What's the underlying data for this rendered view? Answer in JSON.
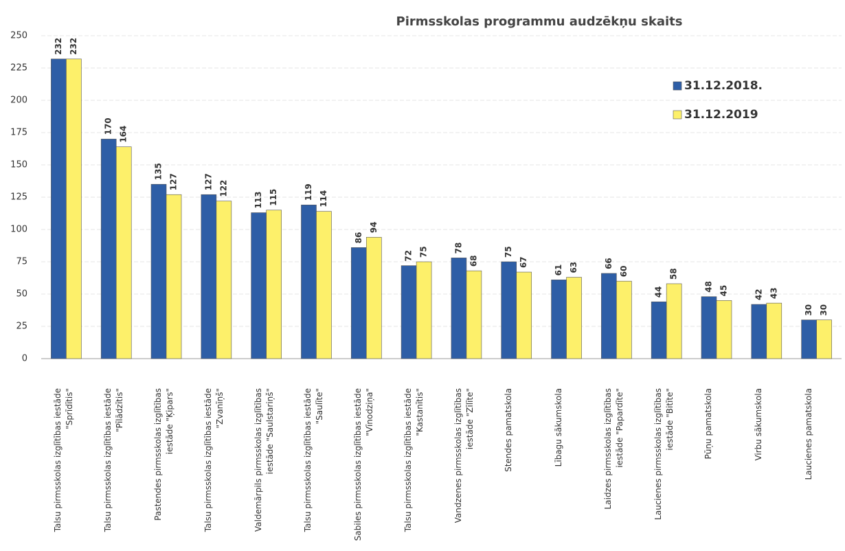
{
  "chart_data": {
    "type": "bar",
    "title": "Pirmsskolas programmu audzēkņu skaits",
    "categories": [
      "Talsu pirmsskolas izglītības iestāde\n\"Sprīdītis\"",
      "Talsu pirmsskolas izglītības iestāde\n\"Pīlādzītis\"",
      "Pastendes pirmsskolas izglītības\niestāde \"Ķipars\"",
      "Talsu pirmsskolas izglītības iestāde\n\"Zvanīņš\"",
      "Valdemārpils pirmsskolas izglītības\niestāde \"Saulstariņš\"",
      "Talsu pirmsskolas izglītības iestāde\n\"Saulīte\"",
      "Sabiles pirmsskolas izglītības iestāde\n\"Vīnodziņa\"",
      "Talsu pirmsskolas izglītības iestāde\n\"Kastanītis\"",
      "Vandzenes pirmsskolas izglītības\niestāde \"Zīlīte\"",
      "Stendes pamatskola",
      "Lībagu sākumskola",
      "Laidzes pirmsskolas izglītības\niestāde \"Papardīte\"",
      "Laucienes pirmsskolas izglītības\niestāde \"Bitīte\"",
      "Pūņu pamatskola",
      "Virbu sākumskola",
      "Laucienes pamatskola"
    ],
    "series": [
      {
        "name": "31.12.2018.",
        "color": "#2e5ea6",
        "values": [
          232,
          170,
          135,
          127,
          113,
          119,
          86,
          72,
          78,
          75,
          61,
          66,
          44,
          48,
          42,
          30
        ]
      },
      {
        "name": "31.12.2019",
        "color": "#fdf06a",
        "values": [
          232,
          164,
          127,
          122,
          115,
          114,
          94,
          75,
          68,
          67,
          63,
          60,
          58,
          45,
          43,
          30
        ]
      }
    ],
    "ylim": [
      0,
      250
    ],
    "yticks": [
      0,
      25,
      50,
      75,
      100,
      125,
      150,
      175,
      200,
      225,
      250
    ],
    "grid": true,
    "legend": "top-right"
  }
}
